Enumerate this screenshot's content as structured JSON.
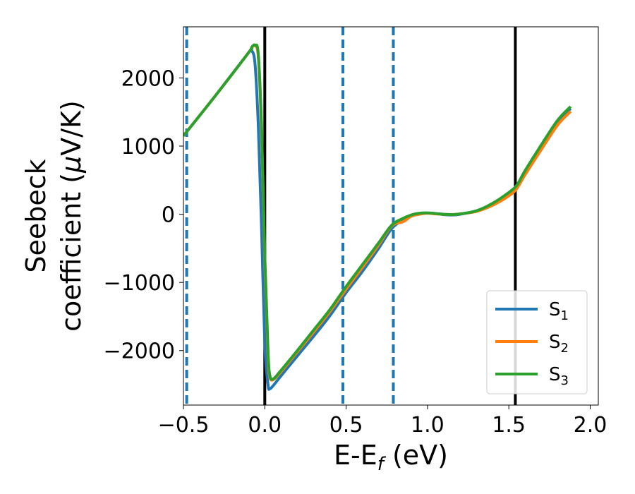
{
  "chart_data": {
    "type": "line",
    "xlabel": "E-E",
    "xlabel_sub": "f",
    "xlabel_unit": " (eV)",
    "ylabel_line1": "Seebeck",
    "ylabel_line2_text": "coefficient  (",
    "ylabel_mu": "μ",
    "ylabel_line2_unit": "V/K)",
    "xlim": [
      -0.5,
      2.05
    ],
    "ylim": [
      -2800,
      2750
    ],
    "xticks": [
      -0.5,
      0.0,
      0.5,
      1.0,
      1.5,
      2.0
    ],
    "xtick_labels": [
      "−0.5",
      "0.0",
      "0.5",
      "1.0",
      "1.5",
      "2.0"
    ],
    "yticks": [
      -2000,
      -1000,
      0,
      1000,
      2000
    ],
    "ytick_labels": [
      "−2000",
      "−1000",
      "0",
      "1000",
      "2000"
    ],
    "legend_position": "lower-right",
    "vlines_solid": [
      0.0,
      1.54
    ],
    "vlines_dashed": [
      -0.48,
      0.48,
      0.79
    ],
    "vline_solid_color": "#000000",
    "vline_dashed_color": "#1f77b4",
    "series": [
      {
        "name": "S",
        "sub": "1",
        "color": "#1f77b4",
        "x": [
          -0.5,
          -0.3,
          -0.1,
          -0.08,
          -0.06,
          -0.04,
          -0.02,
          0.0,
          0.02,
          0.03,
          0.05,
          0.1,
          0.2,
          0.3,
          0.4,
          0.5,
          0.6,
          0.7,
          0.78,
          0.85,
          0.9,
          0.95,
          1.0,
          1.05,
          1.1,
          1.15,
          1.2,
          1.3,
          1.4,
          1.5,
          1.55,
          1.6,
          1.7,
          1.8,
          1.88
        ],
        "y": [
          1150,
          1750,
          2370,
          2400,
          2200,
          1300,
          -200,
          -1900,
          -2500,
          -2560,
          -2520,
          -2370,
          -2080,
          -1790,
          -1490,
          -1150,
          -840,
          -500,
          -210,
          -80,
          -20,
          10,
          20,
          10,
          -5,
          -10,
          0,
          50,
          150,
          300,
          420,
          620,
          1000,
          1350,
          1550
        ]
      },
      {
        "name": "S",
        "sub": "2",
        "color": "#ff7f0e",
        "x": [
          -0.5,
          -0.3,
          -0.1,
          -0.08,
          -0.06,
          -0.04,
          -0.02,
          0.0,
          0.02,
          0.03,
          0.05,
          0.1,
          0.2,
          0.3,
          0.4,
          0.5,
          0.6,
          0.7,
          0.78,
          0.85,
          0.9,
          0.95,
          1.0,
          1.05,
          1.1,
          1.15,
          1.2,
          1.3,
          1.4,
          1.5,
          1.55,
          1.6,
          1.7,
          1.8,
          1.88
        ],
        "y": [
          1150,
          1750,
          2370,
          2450,
          2470,
          2300,
          1200,
          -700,
          -2100,
          -2380,
          -2430,
          -2310,
          -2020,
          -1730,
          -1430,
          -1100,
          -780,
          -450,
          -170,
          -110,
          -30,
          0,
          15,
          5,
          0,
          -5,
          5,
          40,
          130,
          270,
          380,
          580,
          950,
          1310,
          1510
        ]
      },
      {
        "name": "S",
        "sub": "3",
        "color": "#2ca02c",
        "x": [
          -0.5,
          -0.3,
          -0.1,
          -0.08,
          -0.06,
          -0.04,
          -0.02,
          0.0,
          0.02,
          0.03,
          0.05,
          0.1,
          0.2,
          0.3,
          0.4,
          0.5,
          0.6,
          0.7,
          0.78,
          0.85,
          0.9,
          0.95,
          1.0,
          1.05,
          1.1,
          1.15,
          1.2,
          1.3,
          1.4,
          1.5,
          1.55,
          1.6,
          1.7,
          1.8,
          1.88
        ],
        "y": [
          1150,
          1750,
          2370,
          2450,
          2480,
          2350,
          1300,
          -600,
          -2000,
          -2350,
          -2420,
          -2290,
          -2000,
          -1700,
          -1400,
          -1060,
          -740,
          -420,
          -160,
          -60,
          -10,
          15,
          20,
          10,
          0,
          -5,
          5,
          50,
          160,
          320,
          430,
          640,
          1020,
          1380,
          1580
        ]
      }
    ]
  }
}
